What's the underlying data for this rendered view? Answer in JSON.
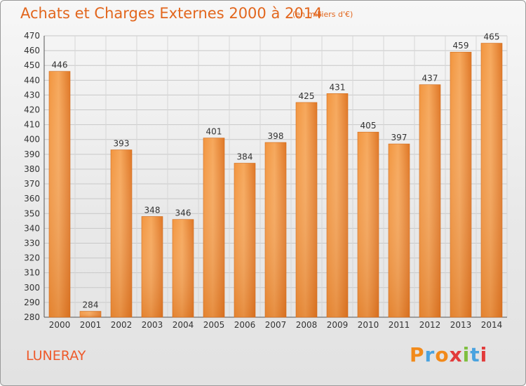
{
  "header": {
    "title": "Achats et Charges Externes 2000 à 2014",
    "subtitle": "(en milliers d'€)"
  },
  "footer": {
    "town": "LUNERAY",
    "brand": "Proxiti"
  },
  "colors": {
    "title": "#e2661d",
    "bar_light": "#f6a55a",
    "bar_dark": "#dd7420",
    "town": "#ee5a2b"
  },
  "chart_data": {
    "type": "bar",
    "title": "Achats et Charges Externes 2000 à 2014",
    "subtitle": "(en milliers d'€)",
    "categories": [
      "2000",
      "2001",
      "2002",
      "2003",
      "2004",
      "2005",
      "2006",
      "2007",
      "2008",
      "2009",
      "2010",
      "2011",
      "2012",
      "2013",
      "2014"
    ],
    "values": [
      446,
      284,
      393,
      348,
      346,
      401,
      384,
      398,
      425,
      431,
      405,
      397,
      437,
      459,
      465
    ],
    "ylim": [
      280,
      470
    ],
    "yticks": [
      280,
      290,
      300,
      310,
      320,
      330,
      340,
      350,
      360,
      370,
      380,
      390,
      400,
      410,
      420,
      430,
      440,
      450,
      460,
      470
    ],
    "grid": true,
    "xlabel": "",
    "ylabel": ""
  }
}
